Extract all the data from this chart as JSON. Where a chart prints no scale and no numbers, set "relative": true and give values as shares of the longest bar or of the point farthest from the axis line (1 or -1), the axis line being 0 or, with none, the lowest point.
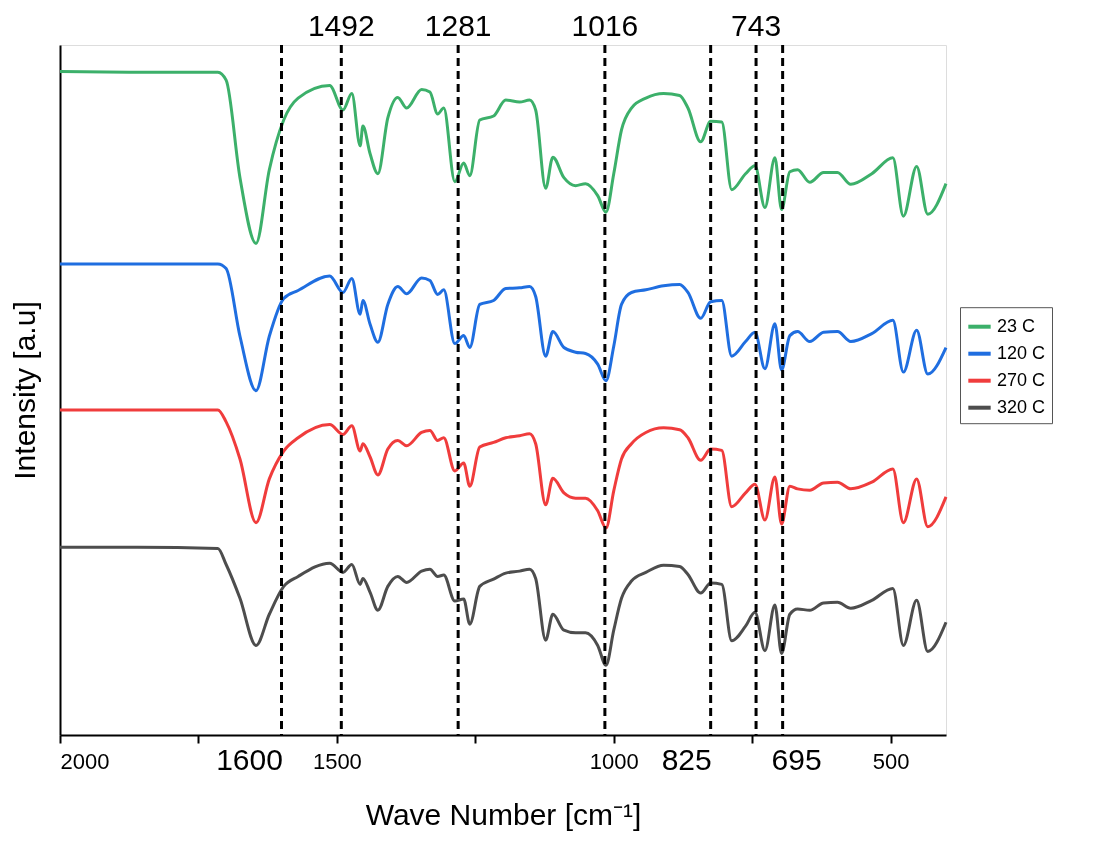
{
  "chart_data": {
    "type": "line",
    "xlabel": "Wave Number [cm⁻¹]",
    "ylabel": "Intensity [a.u]",
    "relative": true,
    "tick_labels": "x",
    "legend": "right",
    "xlim": [
      2000,
      400
    ],
    "xticks": [
      2000,
      {
        "value": 1750,
        "label": null
      },
      1500,
      {
        "value": 1250,
        "label": null
      },
      1000,
      {
        "value": 750,
        "label": null
      },
      500
    ],
    "x": [
      2000,
      1860,
      1715,
      1700,
      1675,
      1646,
      1622,
      1596,
      1570,
      1513,
      1489,
      1473,
      1458,
      1453,
      1440,
      1426,
      1408,
      1390,
      1374,
      1347,
      1332,
      1318,
      1307,
      1287,
      1271,
      1260,
      1242,
      1217,
      1195,
      1170,
      1152,
      1141,
      1123,
      1110,
      1090,
      1069,
      1051,
      1029,
      1014,
      1000,
      986,
      968,
      942,
      910,
      881,
      866,
      843,
      825,
      805,
      787,
      762,
      745,
      727,
      709,
      697,
      682,
      668,
      646,
      621,
      596,
      572,
      534,
      496,
      477,
      453,
      433,
      400
    ],
    "series": [
      {
        "name": "23 C",
        "color": "#3cb06a",
        "values": [
          1.0,
          0.999,
          0.999,
          0.987,
          0.84,
          0.741,
          0.852,
          0.927,
          0.96,
          0.979,
          0.942,
          0.967,
          0.888,
          0.918,
          0.876,
          0.846,
          0.93,
          0.961,
          0.945,
          0.973,
          0.969,
          0.936,
          0.945,
          0.834,
          0.862,
          0.843,
          0.927,
          0.933,
          0.957,
          0.954,
          0.957,
          0.942,
          0.824,
          0.871,
          0.84,
          0.828,
          0.831,
          0.813,
          0.788,
          0.846,
          0.912,
          0.945,
          0.96,
          0.967,
          0.964,
          0.945,
          0.894,
          0.925,
          0.924,
          0.822,
          0.846,
          0.858,
          0.795,
          0.87,
          0.792,
          0.849,
          0.852,
          0.833,
          0.848,
          0.848,
          0.83,
          0.846,
          0.87,
          0.782,
          0.857,
          0.785,
          0.831
        ]
      },
      {
        "name": "120 C",
        "color": "#1f6ee0",
        "values": [
          0.71,
          0.71,
          0.71,
          0.703,
          0.601,
          0.519,
          0.601,
          0.658,
          0.67,
          0.692,
          0.667,
          0.688,
          0.634,
          0.655,
          0.619,
          0.592,
          0.649,
          0.676,
          0.665,
          0.689,
          0.685,
          0.664,
          0.671,
          0.59,
          0.602,
          0.584,
          0.649,
          0.655,
          0.673,
          0.674,
          0.676,
          0.661,
          0.571,
          0.608,
          0.584,
          0.577,
          0.575,
          0.559,
          0.534,
          0.586,
          0.649,
          0.667,
          0.671,
          0.677,
          0.679,
          0.667,
          0.628,
          0.653,
          0.655,
          0.571,
          0.593,
          0.607,
          0.552,
          0.62,
          0.55,
          0.602,
          0.608,
          0.593,
          0.607,
          0.608,
          0.593,
          0.605,
          0.625,
          0.547,
          0.61,
          0.544,
          0.584
        ]
      },
      {
        "name": "270 C",
        "color": "#f03c3c",
        "values": [
          0.49,
          0.49,
          0.49,
          0.472,
          0.416,
          0.32,
          0.386,
          0.428,
          0.448,
          0.468,
          0.453,
          0.466,
          0.428,
          0.439,
          0.419,
          0.392,
          0.431,
          0.444,
          0.436,
          0.456,
          0.459,
          0.444,
          0.448,
          0.398,
          0.41,
          0.375,
          0.434,
          0.441,
          0.448,
          0.451,
          0.454,
          0.439,
          0.347,
          0.387,
          0.365,
          0.357,
          0.357,
          0.338,
          0.312,
          0.368,
          0.416,
          0.439,
          0.456,
          0.463,
          0.46,
          0.448,
          0.414,
          0.431,
          0.429,
          0.344,
          0.365,
          0.378,
          0.324,
          0.389,
          0.318,
          0.375,
          0.371,
          0.369,
          0.38,
          0.381,
          0.371,
          0.381,
          0.401,
          0.32,
          0.386,
          0.314,
          0.359
        ]
      },
      {
        "name": "320 C",
        "color": "#4d4d4d",
        "values": [
          0.283,
          0.283,
          0.281,
          0.257,
          0.206,
          0.135,
          0.182,
          0.224,
          0.239,
          0.259,
          0.245,
          0.257,
          0.227,
          0.236,
          0.215,
          0.188,
          0.224,
          0.239,
          0.23,
          0.247,
          0.25,
          0.239,
          0.241,
          0.202,
          0.205,
          0.167,
          0.224,
          0.235,
          0.244,
          0.247,
          0.25,
          0.236,
          0.143,
          0.182,
          0.158,
          0.154,
          0.154,
          0.135,
          0.105,
          0.158,
          0.206,
          0.232,
          0.245,
          0.256,
          0.254,
          0.242,
          0.214,
          0.229,
          0.227,
          0.142,
          0.164,
          0.185,
          0.127,
          0.196,
          0.123,
          0.182,
          0.19,
          0.188,
          0.199,
          0.2,
          0.191,
          0.203,
          0.221,
          0.135,
          0.203,
          0.126,
          0.17
        ]
      }
    ],
    "ref_lines": [
      {
        "axis": "x",
        "value": 1600,
        "label": "1600",
        "color": "#000000",
        "line_style": "dashed"
      },
      {
        "axis": "x",
        "value": 1492,
        "label": "1492",
        "color": "#000000",
        "line_style": "dashed"
      },
      {
        "axis": "x",
        "value": 1281,
        "label": "1281",
        "color": "#000000",
        "line_style": "dashed"
      },
      {
        "axis": "x",
        "value": 1016,
        "label": "1016",
        "color": "#000000",
        "line_style": "dashed"
      },
      {
        "axis": "x",
        "value": 825,
        "label": "825",
        "color": "#000000",
        "line_style": "dashed"
      },
      {
        "axis": "x",
        "value": 743,
        "label": "743",
        "color": "#000000",
        "line_style": "dashed"
      },
      {
        "axis": "x",
        "value": 695,
        "label": "695",
        "color": "#000000",
        "line_style": "dashed"
      }
    ]
  }
}
